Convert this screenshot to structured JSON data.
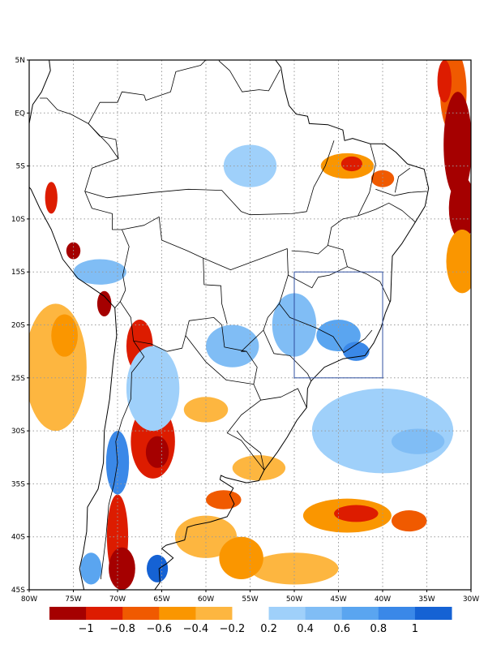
{
  "map": {
    "lon_range": [
      -80,
      -30
    ],
    "lat_range": [
      -45,
      5
    ],
    "lon_ticks": [
      {
        "value": -80,
        "label": "80W"
      },
      {
        "value": -75,
        "label": "75W"
      },
      {
        "value": -70,
        "label": "70W"
      },
      {
        "value": -65,
        "label": "65W"
      },
      {
        "value": -60,
        "label": "60W"
      },
      {
        "value": -55,
        "label": "55W"
      },
      {
        "value": -50,
        "label": "50W"
      },
      {
        "value": -45,
        "label": "45W"
      },
      {
        "value": -40,
        "label": "40W"
      },
      {
        "value": -35,
        "label": "35W"
      },
      {
        "value": -30,
        "label": "30W"
      }
    ],
    "lat_ticks": [
      {
        "value": 5,
        "label": "5N"
      },
      {
        "value": 0,
        "label": "EQ"
      },
      {
        "value": -5,
        "label": "5S"
      },
      {
        "value": -10,
        "label": "10S"
      },
      {
        "value": -15,
        "label": "15S"
      },
      {
        "value": -20,
        "label": "20S"
      },
      {
        "value": -25,
        "label": "25S"
      },
      {
        "value": -30,
        "label": "30S"
      },
      {
        "value": -35,
        "label": "35S"
      },
      {
        "value": -40,
        "label": "40S"
      },
      {
        "value": -45,
        "label": "45S"
      }
    ],
    "highlight_box": {
      "lon": [
        -50,
        -40
      ],
      "lat": [
        -25,
        -15
      ],
      "color": "#3050a0"
    },
    "colors": {
      "neg_1.0": "#a50000",
      "neg_0.8": "#dd1c00",
      "neg_0.6": "#f05a00",
      "neg_0.4": "#fa9600",
      "neg_0.2": "#fdb640",
      "pos_0.2": "#9fd0fa",
      "pos_0.4": "#80bdf5",
      "pos_0.6": "#5aa5f0",
      "pos_0.8": "#3a88e8",
      "pos_1.0": "#1562d4"
    }
  },
  "colorbar": {
    "colors": [
      "#a50000",
      "#dd1c00",
      "#f05a00",
      "#fa9600",
      "#fdb640",
      "#ffffff",
      "#9fd0fa",
      "#80bdf5",
      "#5aa5f0",
      "#3a88e8",
      "#1562d4"
    ],
    "labels": [
      "−1",
      "−0.8",
      "−0.6",
      "−0.4",
      "−0.2",
      "0.2",
      "0.4",
      "0.6",
      "0.8",
      "1"
    ]
  },
  "anomaly_fields": [
    {
      "lon": -32,
      "lat": 2,
      "rx": 1.5,
      "ry": 4,
      "v": -0.6
    },
    {
      "lon": -31.5,
      "lat": -3,
      "rx": 1.6,
      "ry": 5,
      "v": -1.0
    },
    {
      "lon": -31,
      "lat": -9,
      "rx": 1.5,
      "ry": 3,
      "v": -1.0
    },
    {
      "lon": -31,
      "lat": -14,
      "rx": 1.8,
      "ry": 3,
      "v": -0.4
    },
    {
      "lon": -33,
      "lat": 3,
      "rx": 0.8,
      "ry": 2,
      "v": -0.8
    },
    {
      "lon": -44,
      "lat": -5,
      "rx": 3,
      "ry": 1.2,
      "v": -0.4
    },
    {
      "lon": -43.5,
      "lat": -4.8,
      "rx": 1.2,
      "ry": 0.7,
      "v": -0.8
    },
    {
      "lon": -40,
      "lat": -6.2,
      "rx": 1.3,
      "ry": 0.8,
      "v": -0.6
    },
    {
      "lon": -77.5,
      "lat": -8,
      "rx": 0.7,
      "ry": 1.5,
      "v": -0.8
    },
    {
      "lon": -75,
      "lat": -13,
      "rx": 0.8,
      "ry": 0.8,
      "v": -1.0
    },
    {
      "lon": -72,
      "lat": -15,
      "rx": 3,
      "ry": 1.2,
      "v": 0.4
    },
    {
      "lon": -71.5,
      "lat": -18,
      "rx": 0.8,
      "ry": 1.2,
      "v": -1.0
    },
    {
      "lon": -67.5,
      "lat": -22,
      "rx": 1.5,
      "ry": 2.5,
      "v": -0.8
    },
    {
      "lon": -77,
      "lat": -24,
      "rx": 3.5,
      "ry": 6,
      "v": -0.2
    },
    {
      "lon": -76,
      "lat": -21,
      "rx": 1.5,
      "ry": 2,
      "v": -0.4
    },
    {
      "lon": -66,
      "lat": -31,
      "rx": 2.5,
      "ry": 3.5,
      "v": -0.8
    },
    {
      "lon": -65.5,
      "lat": -32,
      "rx": 1.3,
      "ry": 1.5,
      "v": -1.0
    },
    {
      "lon": -70,
      "lat": -33,
      "rx": 1.3,
      "ry": 3,
      "v": 0.8
    },
    {
      "lon": -70,
      "lat": -40,
      "rx": 1.2,
      "ry": 4,
      "v": -0.8
    },
    {
      "lon": -69.5,
      "lat": -43,
      "rx": 1.5,
      "ry": 2,
      "v": -1.0
    },
    {
      "lon": -65.5,
      "lat": -43,
      "rx": 1.2,
      "ry": 1.3,
      "v": 1.0
    },
    {
      "lon": -73,
      "lat": -43,
      "rx": 1.2,
      "ry": 1.5,
      "v": 0.6
    },
    {
      "lon": -60,
      "lat": -40,
      "rx": 3.5,
      "ry": 2,
      "v": -0.2
    },
    {
      "lon": -58,
      "lat": -36.5,
      "rx": 2,
      "ry": 0.9,
      "v": -0.6
    },
    {
      "lon": -44,
      "lat": -38,
      "rx": 5,
      "ry": 1.6,
      "v": -0.4
    },
    {
      "lon": -43,
      "lat": -37.8,
      "rx": 2.5,
      "ry": 0.8,
      "v": -0.8
    },
    {
      "lon": -37,
      "lat": -38.5,
      "rx": 2,
      "ry": 1,
      "v": -0.6
    },
    {
      "lon": -50,
      "lat": -43,
      "rx": 5,
      "ry": 1.5,
      "v": -0.2
    },
    {
      "lon": -56,
      "lat": -42,
      "rx": 2.5,
      "ry": 2,
      "v": -0.4
    },
    {
      "lon": -60,
      "lat": -28,
      "rx": 2.5,
      "ry": 1.2,
      "v": -0.2
    },
    {
      "lon": -54,
      "lat": -33.5,
      "rx": 3,
      "ry": 1.2,
      "v": -0.2
    },
    {
      "lon": -50,
      "lat": -20,
      "rx": 2.5,
      "ry": 3,
      "v": 0.4
    },
    {
      "lon": -45,
      "lat": -21,
      "rx": 2.5,
      "ry": 1.5,
      "v": 0.6
    },
    {
      "lon": -43,
      "lat": -22.5,
      "rx": 1.5,
      "ry": 0.9,
      "v": 0.8
    },
    {
      "lon": -40,
      "lat": -30,
      "rx": 8,
      "ry": 4,
      "v": 0.2
    },
    {
      "lon": -36,
      "lat": -31,
      "rx": 3,
      "ry": 1.2,
      "v": 0.4
    },
    {
      "lon": -55,
      "lat": -5,
      "rx": 3,
      "ry": 2,
      "v": 0.2
    },
    {
      "lon": -57,
      "lat": -22,
      "rx": 3,
      "ry": 2,
      "v": 0.4
    },
    {
      "lon": -66,
      "lat": -26,
      "rx": 3,
      "ry": 4,
      "v": 0.2
    }
  ]
}
